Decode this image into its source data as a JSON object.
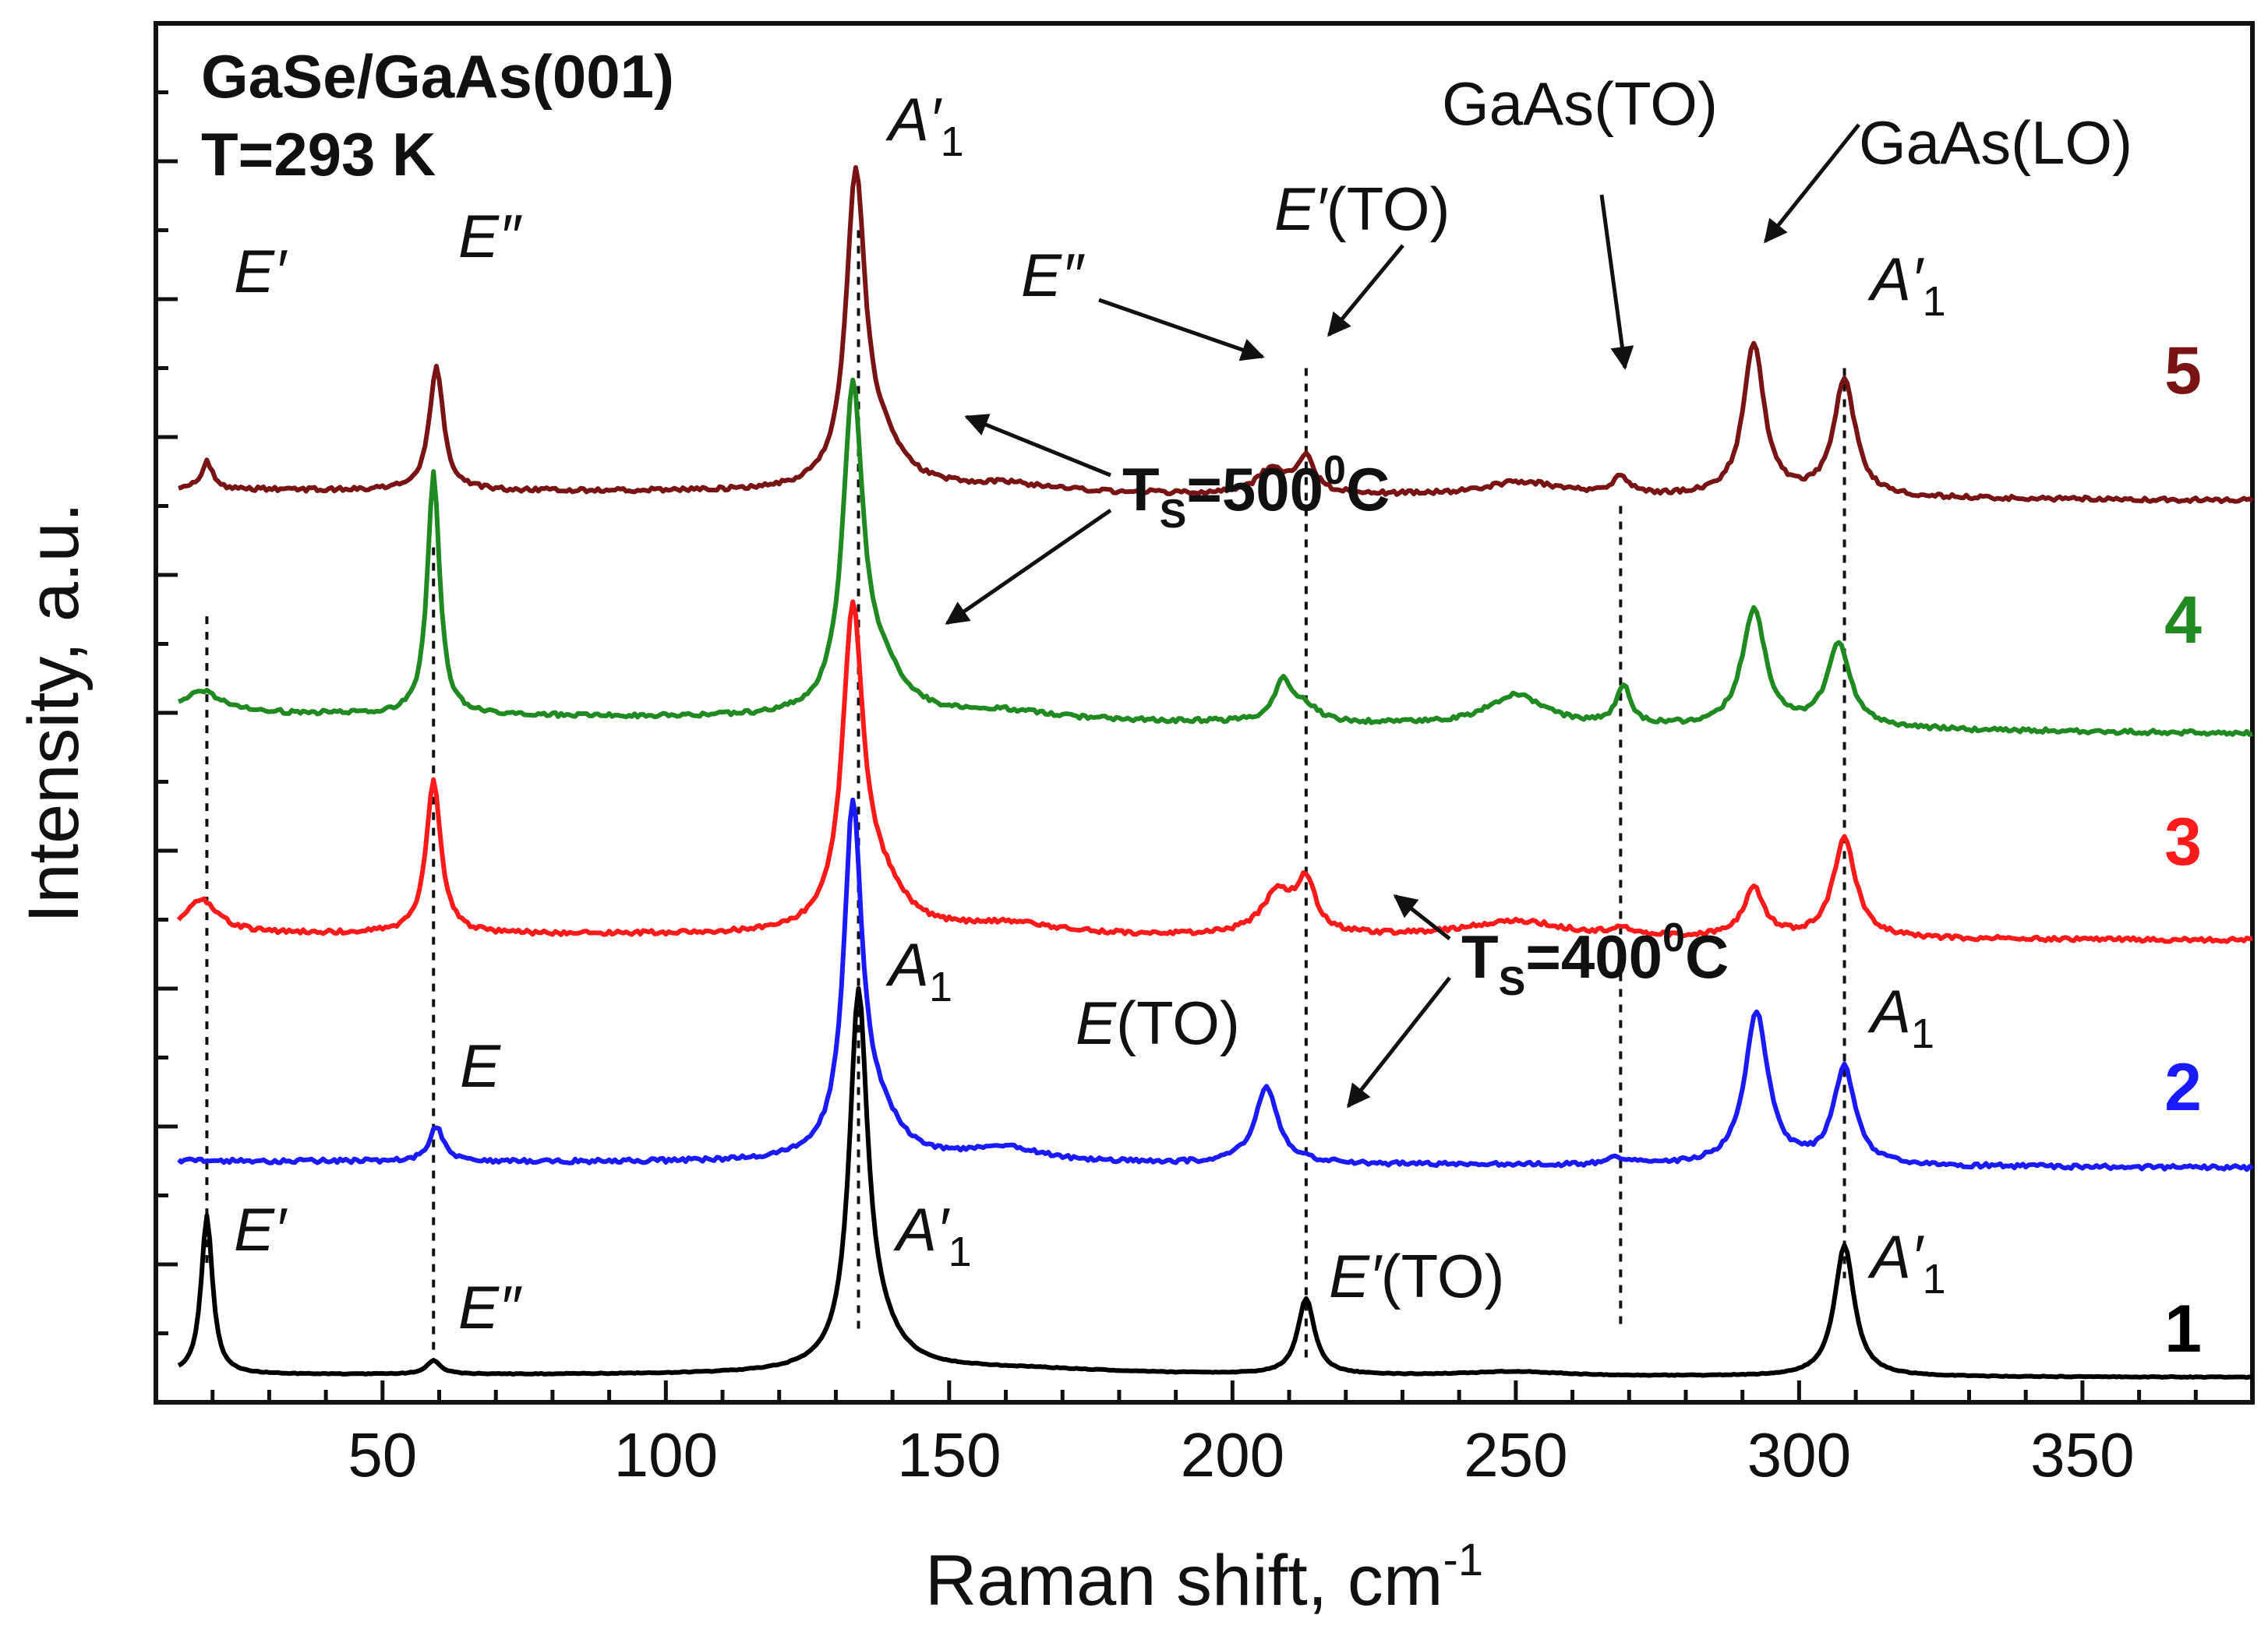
{
  "chart_data": {
    "type": "line",
    "title": "GaSe/GaAs(001)",
    "subtitle": "T=293 K",
    "xlabel_main": "Raman shift, cm",
    "xlabel_sup": "-1",
    "ylabel": "Intensity, a.u.",
    "xlim": [
      10,
      380
    ],
    "ylim": [
      0,
      10
    ],
    "xticks": [
      50,
      100,
      150,
      200,
      250,
      300,
      350
    ],
    "grid": false,
    "colors": {
      "1": "#000000",
      "2": "#1a1aff",
      "3": "#ff1a1a",
      "4": "#1f8a1f",
      "5": "#7a1414"
    },
    "series": [
      {
        "name": "1",
        "color": "#000000",
        "baseline": 0.2,
        "tilt": -0.02,
        "peaks": [
          [
            19,
            1.15,
            1.2
          ],
          [
            59,
            0.1,
            1.5
          ],
          [
            134,
            2.6,
            1.9
          ],
          [
            137,
            0.25,
            5
          ],
          [
            213,
            0.55,
            1.8
          ],
          [
            308,
            0.95,
            2.1
          ],
          [
            160,
            0.05,
            25
          ],
          [
            250,
            0.03,
            10
          ]
        ]
      },
      {
        "name": "2",
        "color": "#1a1aff",
        "baseline": 1.75,
        "tilt": -0.05,
        "peaks": [
          [
            59.5,
            0.25,
            1.5
          ],
          [
            133,
            2.45,
            1.9
          ],
          [
            137,
            0.3,
            5
          ],
          [
            160,
            0.1,
            8
          ],
          [
            206,
            0.55,
            2.5
          ],
          [
            268,
            0.05,
            2
          ],
          [
            292.5,
            1.1,
            2.5
          ],
          [
            308,
            0.7,
            2.3
          ]
        ]
      },
      {
        "name": "3",
        "color": "#ff1a1a",
        "baseline": 3.4,
        "tilt": -0.05,
        "peaks": [
          [
            18,
            0.25,
            3.5
          ],
          [
            59,
            1.1,
            1.6
          ],
          [
            133,
            2.25,
            2.2
          ],
          [
            138,
            0.3,
            5
          ],
          [
            160,
            0.08,
            10
          ],
          [
            208,
            0.3,
            3.5
          ],
          [
            213,
            0.35,
            2
          ],
          [
            250,
            0.12,
            10
          ],
          [
            268.5,
            0.06,
            2
          ],
          [
            292,
            0.35,
            2.2
          ],
          [
            308,
            0.72,
            2.4
          ]
        ]
      },
      {
        "name": "4",
        "color": "#1f8a1f",
        "baseline": 5.0,
        "tilt": -0.15,
        "peaks": [
          [
            18,
            0.16,
            4
          ],
          [
            59,
            1.75,
            1.3
          ],
          [
            133,
            2.3,
            2.1
          ],
          [
            138,
            0.3,
            5
          ],
          [
            160,
            0.06,
            10
          ],
          [
            209,
            0.3,
            2
          ],
          [
            213,
            0.1,
            2.5
          ],
          [
            250,
            0.22,
            6
          ],
          [
            269,
            0.28,
            1.5
          ],
          [
            292,
            0.85,
            2.5
          ],
          [
            307,
            0.6,
            2.5
          ]
        ]
      },
      {
        "name": "5",
        "color": "#7a1414",
        "baseline": 6.62,
        "tilt": -0.08,
        "peaks": [
          [
            19,
            0.2,
            1.2
          ],
          [
            59.5,
            0.9,
            1.5
          ],
          [
            133.5,
            2.2,
            2.0
          ],
          [
            138,
            0.3,
            5
          ],
          [
            160,
            0.06,
            10
          ],
          [
            207,
            0.18,
            3
          ],
          [
            213,
            0.25,
            1.8
          ],
          [
            251,
            0.1,
            8
          ],
          [
            268.5,
            0.12,
            2
          ],
          [
            292,
            1.1,
            2.2
          ],
          [
            308,
            0.85,
            2.3
          ]
        ]
      }
    ],
    "guide_lines_x": [
      19,
      59,
      134,
      213,
      268.5,
      308
    ],
    "curve_labels": [
      "5",
      "4",
      "3",
      "2",
      "1"
    ],
    "annotations": {
      "e_prime_5": "E′",
      "e_dprime_5": "E″",
      "a1p_5": "A′",
      "e_dprime_5b": "E″",
      "e_prime_to_5_it": "E′",
      "e_prime_to_5_rest": "(TO)",
      "gaas_to": "GaAs(TO)",
      "gaas_lo": "GaAs(LO)",
      "a1p_5b": "A′",
      "ts500_t": "T",
      "ts500_sub": "S",
      "ts500_mid": "=500",
      "ts500_sup": "0",
      "ts500_end": "C",
      "ts400_t": "T",
      "ts400_sub": "S",
      "ts400_mid": "=400",
      "ts400_sup": "0",
      "ts400_end": "C",
      "a1_2": "A",
      "e_to_2_it": "E",
      "e_to_2_rest": "(TO)",
      "e_2": "E",
      "a1_2b": "A",
      "e_prime_1": "E′",
      "e_dprime_1": "E″",
      "a1p_1": "A′",
      "e_prime_to_1_it": "E′",
      "e_prime_to_1_rest": "(TO)",
      "a1p_1b": "A′",
      "sub1": "1"
    }
  }
}
